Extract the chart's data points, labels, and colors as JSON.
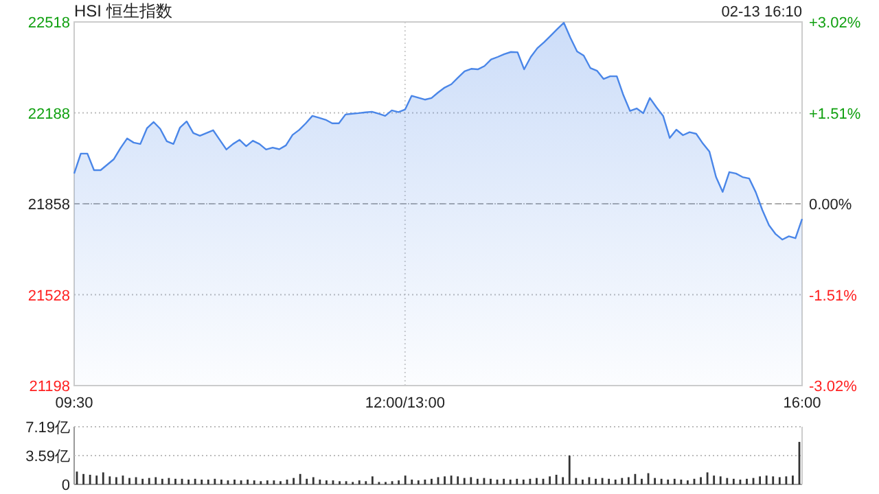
{
  "chart_data": [
    {
      "type": "area",
      "title": "HSI 恒生指数",
      "annotations": [
        "02-13 16:10"
      ],
      "categories": [
        "09:30",
        null,
        null,
        null,
        null,
        null,
        null,
        null,
        null,
        null,
        null,
        null,
        null,
        null,
        null,
        null,
        null,
        null,
        null,
        null,
        null,
        null,
        null,
        null,
        null,
        null,
        null,
        null,
        null,
        null,
        null,
        null,
        null,
        null,
        null,
        null,
        null,
        null,
        null,
        null,
        null,
        null,
        null,
        null,
        null,
        null,
        null,
        null,
        null,
        null,
        "12:00/13:00",
        null,
        null,
        null,
        null,
        null,
        null,
        null,
        null,
        null,
        null,
        null,
        null,
        null,
        null,
        null,
        null,
        null,
        null,
        null,
        null,
        null,
        null,
        null,
        null,
        null,
        null,
        null,
        null,
        null,
        null,
        null,
        null,
        null,
        null,
        null,
        null,
        null,
        null,
        null,
        null,
        null,
        null,
        null,
        null,
        null,
        null,
        null,
        null,
        null,
        null,
        null,
        null,
        null,
        null,
        null,
        null,
        null,
        null,
        null,
        "16:00"
      ],
      "series": [
        {
          "color": "#4a86e8",
          "values": [
            21968,
            22040,
            22040,
            21980,
            21980,
            22000,
            22020,
            22060,
            22095,
            22080,
            22075,
            22132,
            22155,
            22130,
            22085,
            22075,
            22135,
            22157,
            22115,
            22105,
            22115,
            22125,
            22090,
            22055,
            22075,
            22090,
            22067,
            22087,
            22075,
            22055,
            22062,
            22056,
            22070,
            22108,
            22126,
            22150,
            22177,
            22170,
            22163,
            22150,
            22150,
            22182,
            22185,
            22187,
            22190,
            22192,
            22185,
            22177,
            22197,
            22191,
            22200,
            22250,
            22243,
            22236,
            22242,
            22262,
            22280,
            22292,
            22316,
            22339,
            22348,
            22346,
            22358,
            22382,
            22391,
            22401,
            22409,
            22408,
            22346,
            22391,
            22423,
            22444,
            22468,
            22492,
            22515,
            22460,
            22411,
            22396,
            22351,
            22341,
            22311,
            22321,
            22321,
            22252,
            22195,
            22204,
            22187,
            22242,
            22208,
            22177,
            22097,
            22127,
            22107,
            22118,
            22112,
            22077,
            22047,
            21955,
            21901,
            21973,
            21968,
            21955,
            21950,
            21900,
            21835,
            21780,
            21748,
            21728,
            21740,
            21733,
            21803
          ]
        }
      ],
      "ylim": [
        21198,
        22518
      ],
      "yticks": [
        21198,
        21528,
        21858,
        22188,
        22518
      ],
      "y2lim": [
        -3.02,
        3.02
      ],
      "y2ticks": [
        {
          "value": -3.02,
          "label": "-3.02%"
        },
        {
          "value": -1.51,
          "label": "-1.51%"
        },
        {
          "value": 0,
          "label": "0.00%"
        },
        {
          "value": 1.51,
          "label": "+1.51%"
        },
        {
          "value": 3.02,
          "label": "+3.02%"
        }
      ],
      "ref_lines": [
        {
          "axis": "y",
          "value": 21858,
          "line_style": "dashed",
          "color": "#aaaaaa"
        }
      ],
      "grid": true,
      "marker": "none",
      "line_style": "solid"
    },
    {
      "type": "bar",
      "tick_labels": "y",
      "grid": "y",
      "categories": [
        null,
        null,
        null,
        null,
        null,
        null,
        null,
        null,
        null,
        null,
        null,
        null,
        null,
        null,
        null,
        null,
        null,
        null,
        null,
        null,
        null,
        null,
        null,
        null,
        null,
        null,
        null,
        null,
        null,
        null,
        null,
        null,
        null,
        null,
        null,
        null,
        null,
        null,
        null,
        null,
        null,
        null,
        null,
        null,
        null,
        null,
        null,
        null,
        null,
        null,
        null,
        null,
        null,
        null,
        null,
        null,
        null,
        null,
        null,
        null,
        null,
        null,
        null,
        null,
        null,
        null,
        null,
        null,
        null,
        null,
        null,
        null,
        null,
        null,
        null,
        null,
        null,
        null,
        null,
        null,
        null,
        null,
        null,
        null,
        null,
        null,
        null,
        null,
        null,
        null,
        null,
        null,
        null,
        null,
        null,
        null,
        null,
        null,
        null,
        null,
        null,
        null,
        null,
        null,
        null,
        null,
        null,
        null,
        null,
        null,
        null
      ],
      "series": [
        {
          "color": "#333333",
          "values": [
            1.6,
            1.3,
            1.2,
            1.1,
            1.5,
            1.0,
            0.9,
            1.1,
            0.8,
            0.9,
            0.7,
            0.8,
            0.9,
            0.7,
            0.8,
            0.7,
            0.7,
            0.6,
            0.7,
            0.6,
            0.6,
            0.7,
            0.6,
            0.5,
            0.6,
            0.5,
            0.6,
            0.5,
            0.4,
            0.5,
            0.5,
            0.4,
            0.6,
            0.8,
            1.3,
            0.7,
            0.9,
            0.6,
            0.5,
            0.5,
            0.4,
            0.4,
            0.3,
            0.5,
            0.4,
            1.0,
            0.3,
            0.3,
            0.4,
            0.5,
            1.1,
            0.6,
            0.5,
            0.6,
            0.7,
            0.9,
            1.0,
            1.1,
            1.0,
            0.8,
            0.9,
            0.7,
            0.8,
            0.7,
            0.6,
            0.7,
            0.6,
            0.7,
            0.6,
            0.7,
            0.8,
            0.7,
            1.0,
            1.2,
            0.9,
            3.6,
            0.8,
            0.6,
            0.9,
            0.7,
            0.8,
            0.7,
            0.6,
            0.8,
            0.9,
            1.3,
            0.7,
            1.4,
            0.8,
            0.7,
            0.6,
            0.7,
            0.6,
            0.5,
            0.7,
            0.9,
            1.5,
            1.1,
            1.0,
            0.8,
            0.7,
            0.6,
            0.7,
            0.8,
            1.0,
            1.1,
            1.0,
            0.9,
            1.0,
            1.1,
            5.3
          ]
        }
      ],
      "ylim": [
        0,
        7.19
      ],
      "yticks": [
        0,
        {
          "value": 3.59,
          "label": "3.59亿"
        },
        {
          "value": 7.19,
          "label": "7.19亿"
        }
      ]
    }
  ]
}
